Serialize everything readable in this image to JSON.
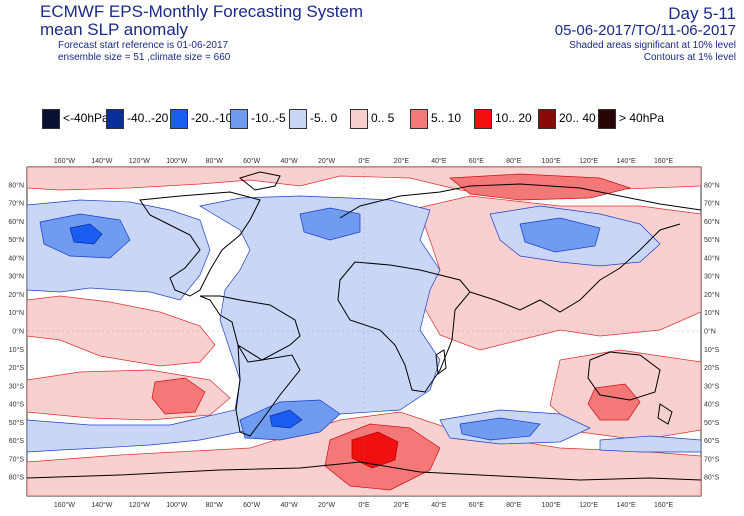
{
  "header": {
    "title_line1": "ECMWF EPS-Monthly Forecasting System",
    "title_line2": "mean SLP anomaly",
    "subtitle_line1": "Forecast start reference is 01-06-2017",
    "subtitle_line2": "ensemble size = 51  ,climate size = 660",
    "day_range": "Day 5-11",
    "date_range": "05-06-2017/TO/11-06-2017",
    "note_shaded": "Shaded areas significant at 10% level",
    "note_contours": "Contours at 1% level"
  },
  "legend": [
    {
      "label": "<-40hPa",
      "color": "#0a1030"
    },
    {
      "label": "-40..-20",
      "color": "#0b2d9b"
    },
    {
      "label": "-20..-10",
      "color": "#1a5cf0"
    },
    {
      "label": "-10..-5",
      "color": "#6f9cf0"
    },
    {
      "label": "-5..  0",
      "color": "#c9d6f6"
    },
    {
      "label": "0..  5",
      "color": "#f9d0d0"
    },
    {
      "label": "5..  10",
      "color": "#f47878"
    },
    {
      "label": "10..  20",
      "color": "#f01010"
    },
    {
      "label": "20..  40",
      "color": "#8a0a0a"
    },
    {
      "label": "> 40hPa",
      "color": "#2a0505"
    }
  ],
  "axes": {
    "lon_ticks_top": [
      "160°W",
      "140°W",
      "120°W",
      "100°W",
      "80°W",
      "60°W",
      "40°W",
      "20°W",
      "0°E",
      "20°E",
      "40°E",
      "60°E",
      "80°E",
      "100°E",
      "120°E",
      "140°E",
      "160°E"
    ],
    "lon_ticks_bottom": [
      "160°W",
      "140°W",
      "120°W",
      "100°W",
      "80°W",
      "60°W",
      "40°W",
      "20°W",
      "0°E",
      "20°E",
      "40°E",
      "60°E",
      "80°E",
      "100°E",
      "120°E",
      "140°E",
      "160°E"
    ],
    "lat_ticks_left": [
      "80°N",
      "70°N",
      "60°N",
      "50°N",
      "40°N",
      "30°N",
      "20°N",
      "10°N",
      "0°N",
      "10°S",
      "20°S",
      "30°S",
      "40°S",
      "50°S",
      "60°S",
      "70°S",
      "80°S"
    ],
    "lat_ticks_right": [
      "80°N",
      "70°N",
      "60°N",
      "50°N",
      "40°N",
      "30°N",
      "20°N",
      "10°N",
      "0°N",
      "10°S",
      "20°S",
      "30°S",
      "40°S",
      "50°S",
      "60°S",
      "70°S",
      "80°S"
    ]
  },
  "map_colors": {
    "ocean_bg": "#ffffff",
    "land_outline": "#000000",
    "contour_neg": "#1a3ad0",
    "contour_pos": "#d01010"
  }
}
